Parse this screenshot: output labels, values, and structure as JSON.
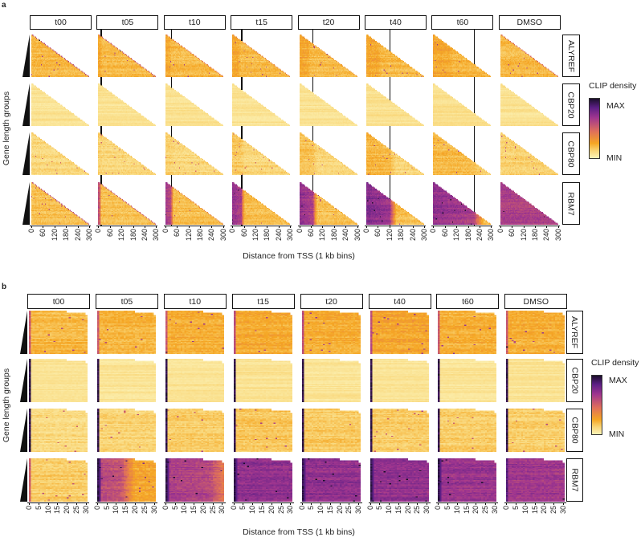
{
  "chart_data": [
    {
      "type": "heatmap",
      "panel_label": "a",
      "shape": "triangle",
      "columns": [
        "t00",
        "t05",
        "t10",
        "t15",
        "t20",
        "t40",
        "t60",
        "DMSO"
      ],
      "rows": [
        "ALYREF",
        "CBP20",
        "CBP80",
        "RBM7"
      ],
      "xlabel": "Distance from TSS (1 kb bins)",
      "ylabel": "Gene length groups",
      "xticks": [
        "0",
        "60",
        "120",
        "180",
        "240",
        "300"
      ],
      "xlim": [
        0,
        300
      ],
      "wave_front_kb": [
        null,
        12,
        30,
        46,
        67,
        120,
        210,
        null
      ],
      "legend": {
        "title": "CLIP density",
        "max_label": "MAX",
        "min_label": "MIN",
        "colors": [
          "#fcf3b8",
          "#f5a623",
          "#e0705a",
          "#a0368f",
          "#1b0f2b"
        ]
      },
      "intensity": {
        "ALYREF": {
          "base": [
            0.24,
            0.24,
            0.24,
            0.24,
            0.24,
            0.24,
            0.26,
            0.24
          ],
          "enrichment": [
            0.24,
            0.3,
            0.3,
            0.3,
            0.3,
            0.3,
            0.3,
            0.28
          ],
          "front_kb": [
            0,
            10,
            20,
            30,
            40,
            60,
            80,
            0
          ],
          "edge": [
            0.6,
            0.55,
            0.45,
            0.4,
            0.35,
            0.3,
            0.3,
            0.5
          ]
        },
        "CBP20": {
          "base": [
            0.09,
            0.09,
            0.09,
            0.09,
            0.09,
            0.1,
            0.1,
            0.09
          ],
          "enrichment": [
            0.09,
            0.1,
            0.1,
            0.1,
            0.1,
            0.1,
            0.1,
            0.09
          ],
          "front_kb": [
            0,
            0,
            0,
            0,
            0,
            0,
            0,
            0
          ],
          "edge": [
            0.1,
            0.1,
            0.1,
            0.1,
            0.1,
            0.1,
            0.1,
            0.1
          ]
        },
        "CBP80": {
          "base": [
            0.14,
            0.14,
            0.14,
            0.15,
            0.15,
            0.14,
            0.14,
            0.16
          ],
          "enrichment": [
            0.14,
            0.16,
            0.17,
            0.2,
            0.22,
            0.26,
            0.24,
            0.18
          ],
          "front_kb": [
            0,
            12,
            30,
            46,
            67,
            120,
            210,
            0
          ],
          "edge": [
            0.2,
            0.2,
            0.2,
            0.2,
            0.2,
            0.2,
            0.2,
            0.2
          ]
        },
        "RBM7": {
          "base": [
            0.22,
            0.22,
            0.22,
            0.22,
            0.22,
            0.22,
            0.22,
            0.55
          ],
          "enrichment": [
            0.22,
            0.6,
            0.66,
            0.7,
            0.72,
            0.76,
            0.72,
            0.65
          ],
          "front_kb": [
            0,
            8,
            28,
            46,
            67,
            120,
            210,
            300
          ],
          "edge": [
            0.6,
            0.55,
            0.4,
            0.3,
            0.3,
            0.3,
            0.3,
            0.3
          ]
        }
      }
    },
    {
      "type": "heatmap",
      "panel_label": "b",
      "shape": "rectangle",
      "columns": [
        "t00",
        "t05",
        "t10",
        "t15",
        "t20",
        "t40",
        "t60",
        "DMSO"
      ],
      "rows": [
        "ALYREF",
        "CBP20",
        "CBP80",
        "RBM7"
      ],
      "xlabel": "Distance from TSS (1 kb bins)",
      "ylabel": "Gene length groups",
      "xticks": [
        "0",
        "5",
        "10",
        "15",
        "20",
        "25",
        "30"
      ],
      "xlim": [
        0,
        30
      ],
      "legend": {
        "title": "CLIP density",
        "max_label": "MAX",
        "min_label": "MIN",
        "colors": [
          "#fcf3b8",
          "#f5a623",
          "#e0705a",
          "#a0368f",
          "#1b0f2b"
        ]
      },
      "intensity": {
        "ALYREF": {
          "base": [
            0.24,
            0.26,
            0.27,
            0.28,
            0.28,
            0.3,
            0.27,
            0.27
          ],
          "first_bin": [
            0.6,
            0.6,
            0.6,
            0.65,
            0.65,
            0.65,
            0.6,
            0.6
          ],
          "enrichment": [
            0.24,
            0.26,
            0.27,
            0.28,
            0.28,
            0.3,
            0.27,
            0.27
          ],
          "front_kb": [
            0,
            0,
            0,
            0,
            0,
            0,
            0,
            0
          ]
        },
        "CBP20": {
          "base": [
            0.08,
            0.08,
            0.08,
            0.09,
            0.08,
            0.08,
            0.08,
            0.08
          ],
          "first_bin": [
            1,
            1,
            1,
            1,
            1,
            1,
            1,
            1
          ],
          "enrichment": [
            0.08,
            0.08,
            0.08,
            0.09,
            0.08,
            0.08,
            0.08,
            0.08
          ],
          "front_kb": [
            0,
            0,
            0,
            0,
            0,
            0,
            0,
            0
          ]
        },
        "CBP80": {
          "base": [
            0.13,
            0.15,
            0.18,
            0.2,
            0.19,
            0.18,
            0.18,
            0.17
          ],
          "first_bin": [
            1,
            1,
            1,
            1,
            1,
            1,
            1,
            1
          ],
          "enrichment": [
            0.13,
            0.15,
            0.18,
            0.2,
            0.19,
            0.18,
            0.18,
            0.17
          ],
          "front_kb": [
            0,
            0,
            0,
            0,
            0,
            0,
            0,
            0
          ]
        },
        "RBM7": {
          "base": [
            0.18,
            0.3,
            0.4,
            0.66,
            0.68,
            0.68,
            0.66,
            0.66
          ],
          "first_bin": [
            0.6,
            1,
            1,
            1,
            1,
            1,
            1,
            0.9
          ],
          "enrichment": [
            0.18,
            0.62,
            0.66,
            0.72,
            0.72,
            0.72,
            0.7,
            0.68
          ],
          "front_kb": [
            0,
            12,
            22,
            31,
            31,
            31,
            31,
            31
          ]
        }
      }
    }
  ]
}
